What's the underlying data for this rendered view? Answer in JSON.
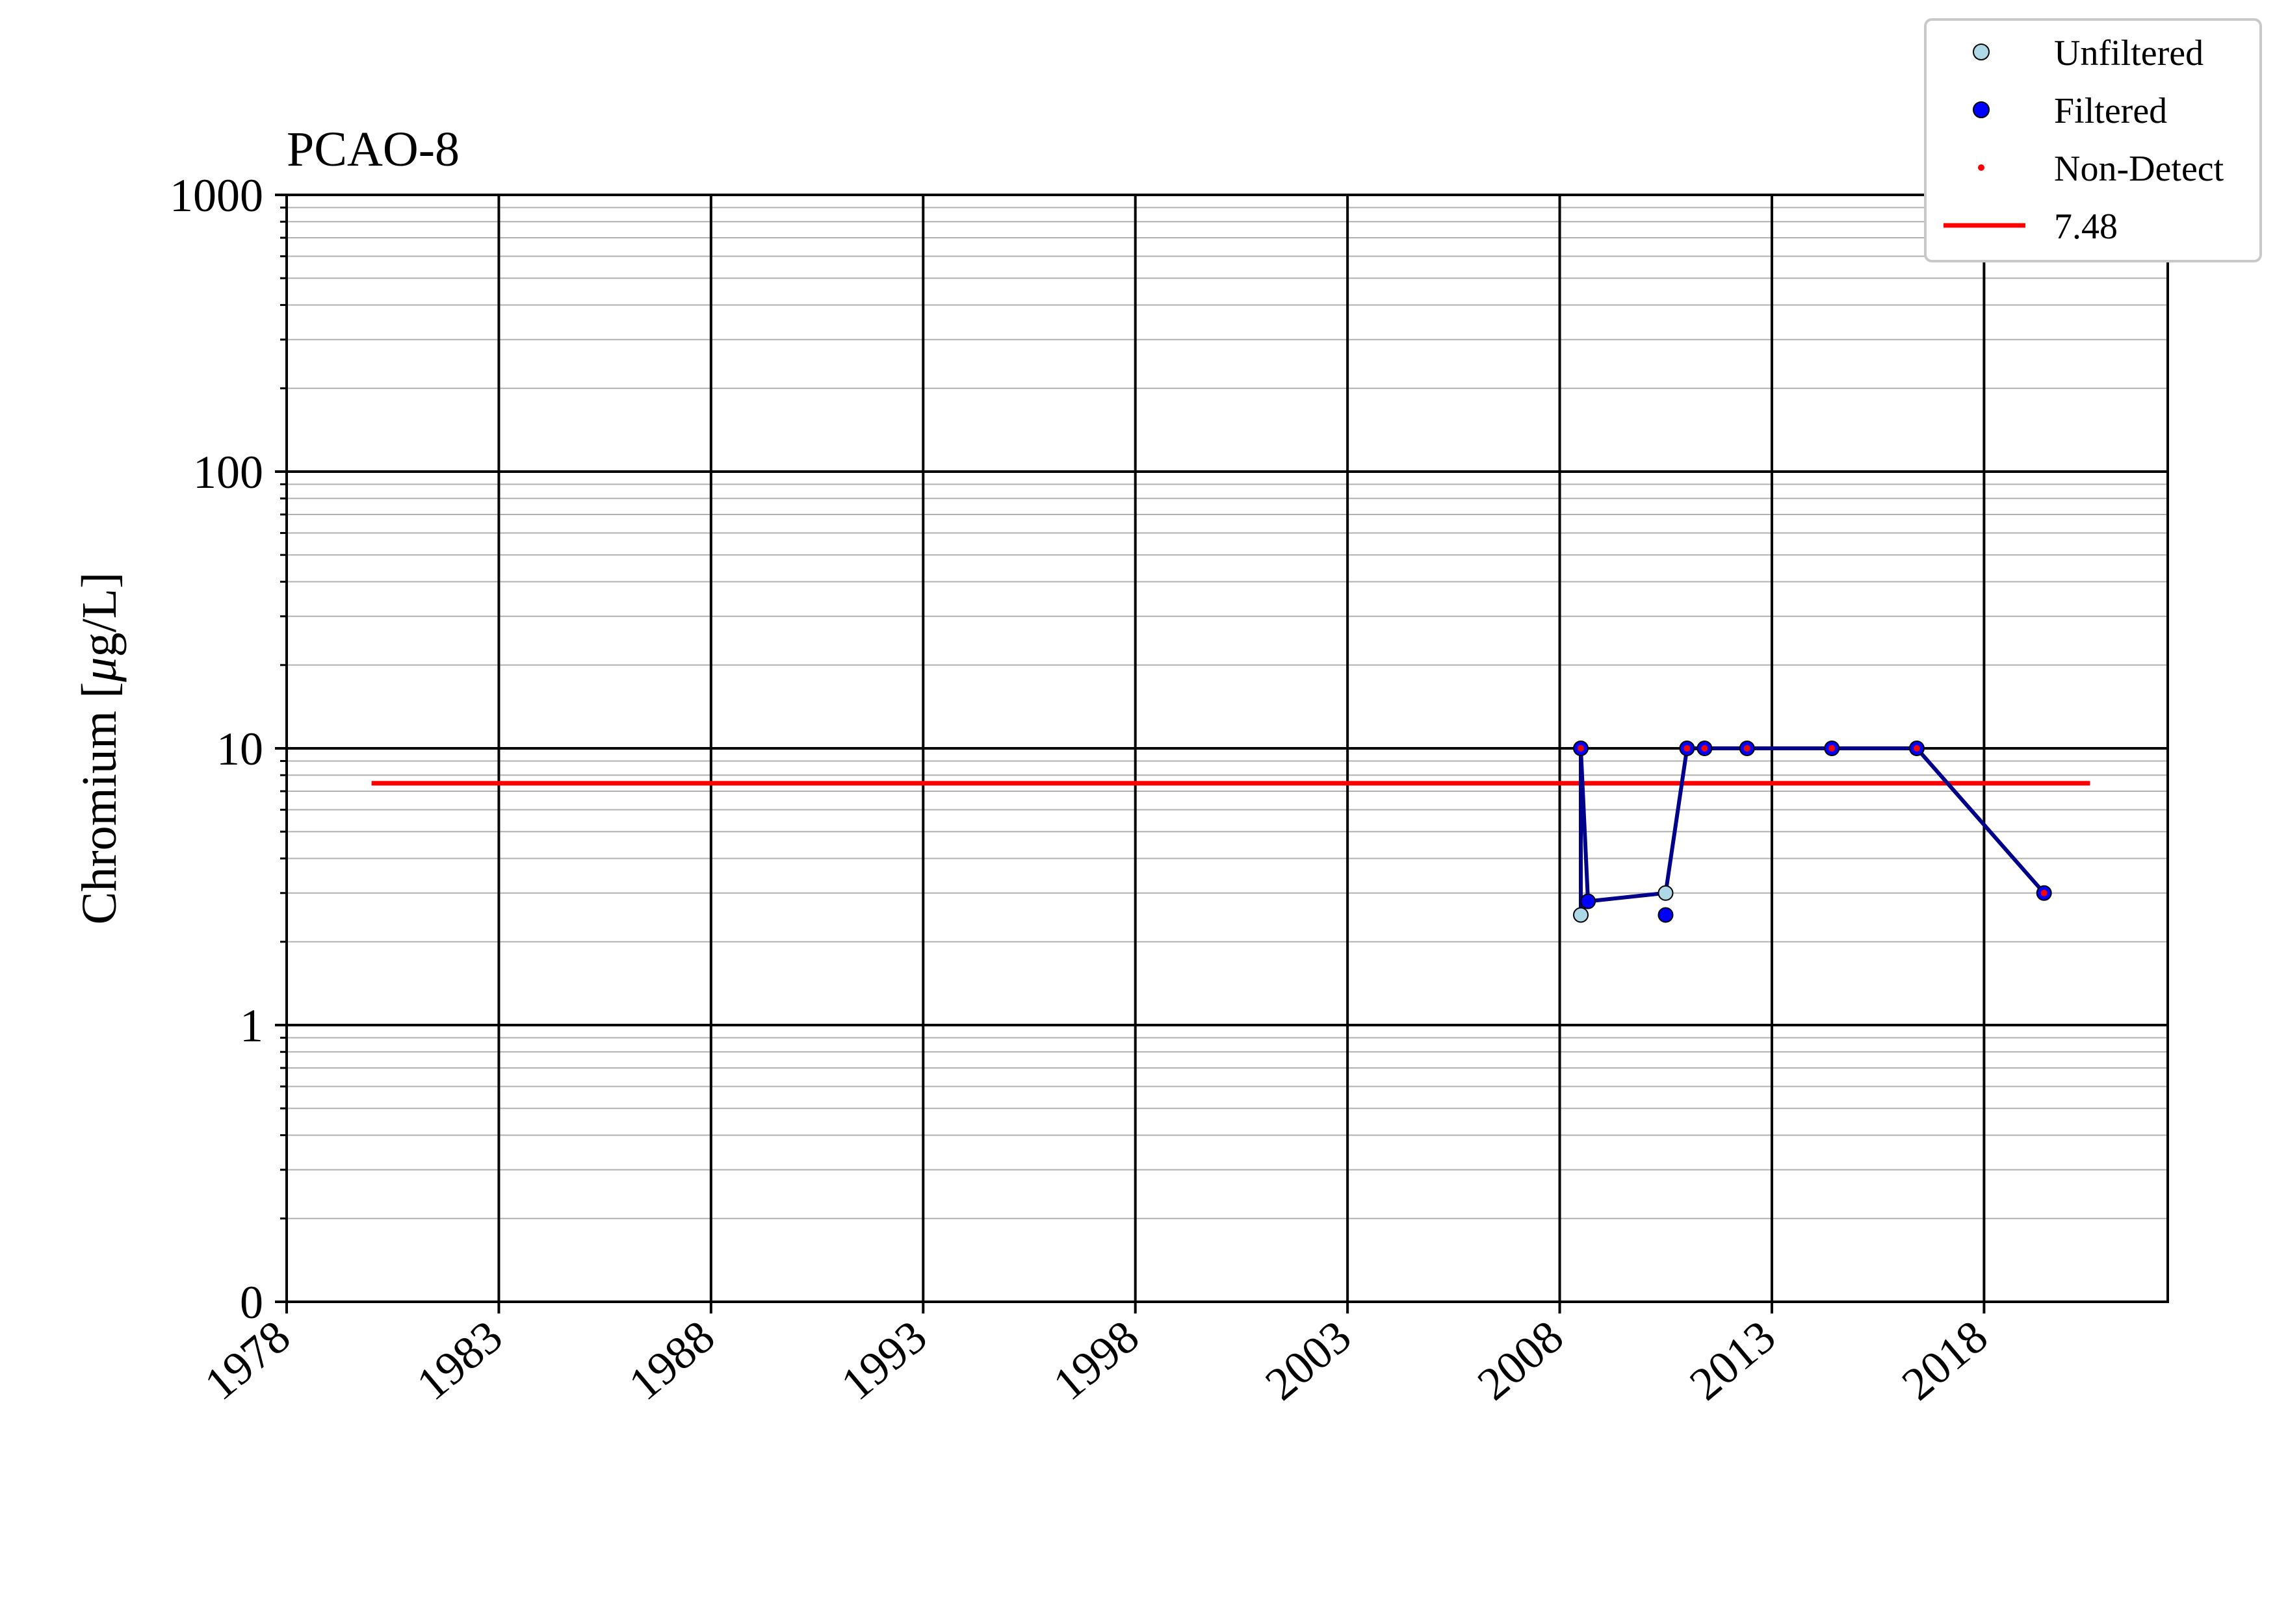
{
  "chart_data": {
    "type": "line",
    "title": "PCAO-8",
    "ylabel_prefix": "Chromium [",
    "ylabel_mu": "μ",
    "ylabel_suffix": "g/L]",
    "xlabel": "",
    "y_scale": "log",
    "ylim": [
      0.1,
      1000
    ],
    "xlim": [
      "1978-01-01",
      "2022-05-01"
    ],
    "x_ticks": [
      "1978",
      "1983",
      "1988",
      "1993",
      "1998",
      "2003",
      "2008",
      "2013",
      "2018"
    ],
    "y_ticks": [
      {
        "value": 0.1,
        "label": "0"
      },
      {
        "value": 1,
        "label": "1"
      },
      {
        "value": 10,
        "label": "10"
      },
      {
        "value": 100,
        "label": "100"
      },
      {
        "value": 1000,
        "label": "1000"
      }
    ],
    "grid": "major and minor",
    "legend_position": "top-right",
    "colors": {
      "line": "#00008b",
      "unfiltered": "#add8e6",
      "filtered": "#0000ff",
      "non_detect": "#ff0000",
      "threshold": "#ff0000"
    },
    "line": [
      {
        "x": "2008-07-01",
        "y": 2.5
      },
      {
        "x": "2008-07-01",
        "y": 10
      },
      {
        "x": "2008-09-01",
        "y": 2.8
      },
      {
        "x": "2010-07-01",
        "y": 3.0
      },
      {
        "x": "2011-01-01",
        "y": 10
      },
      {
        "x": "2011-06-01",
        "y": 10
      },
      {
        "x": "2012-06-01",
        "y": 10
      },
      {
        "x": "2014-06-01",
        "y": 10
      },
      {
        "x": "2016-06-01",
        "y": 10
      },
      {
        "x": "2019-06-01",
        "y": 3.0
      }
    ],
    "series": [
      {
        "name": "Unfiltered",
        "points": [
          {
            "x": "2008-07-01",
            "y": 2.5
          },
          {
            "x": "2010-07-01",
            "y": 3.0
          }
        ]
      },
      {
        "name": "Filtered",
        "points": [
          {
            "x": "2008-07-01",
            "y": 10
          },
          {
            "x": "2008-09-01",
            "y": 2.8
          },
          {
            "x": "2010-07-01",
            "y": 2.5
          },
          {
            "x": "2011-01-01",
            "y": 10
          },
          {
            "x": "2011-06-01",
            "y": 10
          },
          {
            "x": "2012-06-01",
            "y": 10
          },
          {
            "x": "2014-06-01",
            "y": 10
          },
          {
            "x": "2016-06-01",
            "y": 10
          },
          {
            "x": "2019-06-01",
            "y": 3.0
          }
        ]
      },
      {
        "name": "Non-Detect",
        "points": [
          {
            "x": "2008-07-01",
            "y": 10
          },
          {
            "x": "2011-01-01",
            "y": 10
          },
          {
            "x": "2011-06-01",
            "y": 10
          },
          {
            "x": "2012-06-01",
            "y": 10
          },
          {
            "x": "2014-06-01",
            "y": 10
          },
          {
            "x": "2016-06-01",
            "y": 10
          },
          {
            "x": "2019-06-01",
            "y": 3.0
          }
        ]
      }
    ],
    "threshold": {
      "name": "7.48",
      "value": 7.48,
      "x_start": "1980-01-01",
      "x_end": "2020-07-01"
    },
    "legend": [
      {
        "label": "Unfiltered",
        "kind": "unfiltered"
      },
      {
        "label": "Filtered",
        "kind": "filtered"
      },
      {
        "label": "Non-Detect",
        "kind": "non_detect"
      },
      {
        "label": "7.48",
        "kind": "threshold"
      }
    ]
  }
}
